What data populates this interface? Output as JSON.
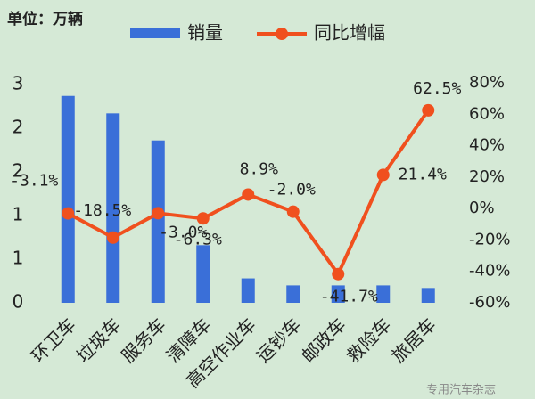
{
  "chart_data": {
    "type": "combo",
    "unit_label": "单位：万辆",
    "watermark": "专用汽车杂志",
    "categories": [
      "环卫车",
      "垃圾车",
      "服务车",
      "清障车",
      "高空作业车",
      "运钞车",
      "邮政车",
      "救险车",
      "旅居车"
    ],
    "series": [
      {
        "name": "销量",
        "type": "bar",
        "color": "#3a6fd8",
        "values": [
          2.37,
          2.17,
          1.86,
          0.66,
          0.28,
          0.2,
          0.2,
          0.2,
          0.17
        ]
      },
      {
        "name": "同比增幅",
        "type": "line",
        "axis": "y2",
        "color": "#f0501e",
        "values": [
          -3.1,
          -18.5,
          -3.0,
          -6.3,
          8.9,
          -2.0,
          -41.7,
          21.4,
          62.5
        ],
        "value_labels": [
          "-3.1%",
          "-18.5%",
          "-3.0%",
          "-6.3%",
          "8.9%",
          "-2.0%",
          "-41.7%",
          "21.4%",
          "62.5%"
        ]
      }
    ],
    "ylim": [
      0,
      2.5
    ],
    "yticks": [
      0,
      {
        "value": 0.5,
        "label": "1"
      },
      1,
      {
        "value": 1.5,
        "label": "2"
      },
      2,
      {
        "value": 2.5,
        "label": "3"
      }
    ],
    "y2lim": [
      -60,
      80
    ],
    "y2ticks": [
      {
        "value": -60,
        "label": "-60%"
      },
      {
        "value": -40,
        "label": "-40%"
      },
      {
        "value": -20,
        "label": "-20%"
      },
      {
        "value": 0,
        "label": "0%"
      },
      {
        "value": 20,
        "label": "20%"
      },
      {
        "value": 40,
        "label": "40%"
      },
      {
        "value": 60,
        "label": "60%"
      },
      {
        "value": 80,
        "label": "80%"
      }
    ],
    "grid": false
  }
}
